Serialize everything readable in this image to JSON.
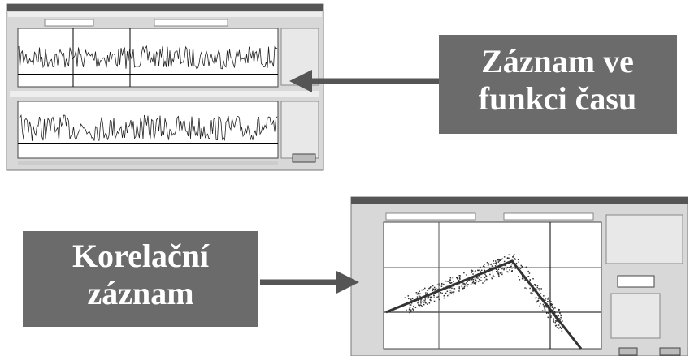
{
  "labels": {
    "time_record": [
      "Záznam ve",
      "funkci času"
    ],
    "correlation_record": [
      "Korelační",
      "záznam"
    ]
  }
}
